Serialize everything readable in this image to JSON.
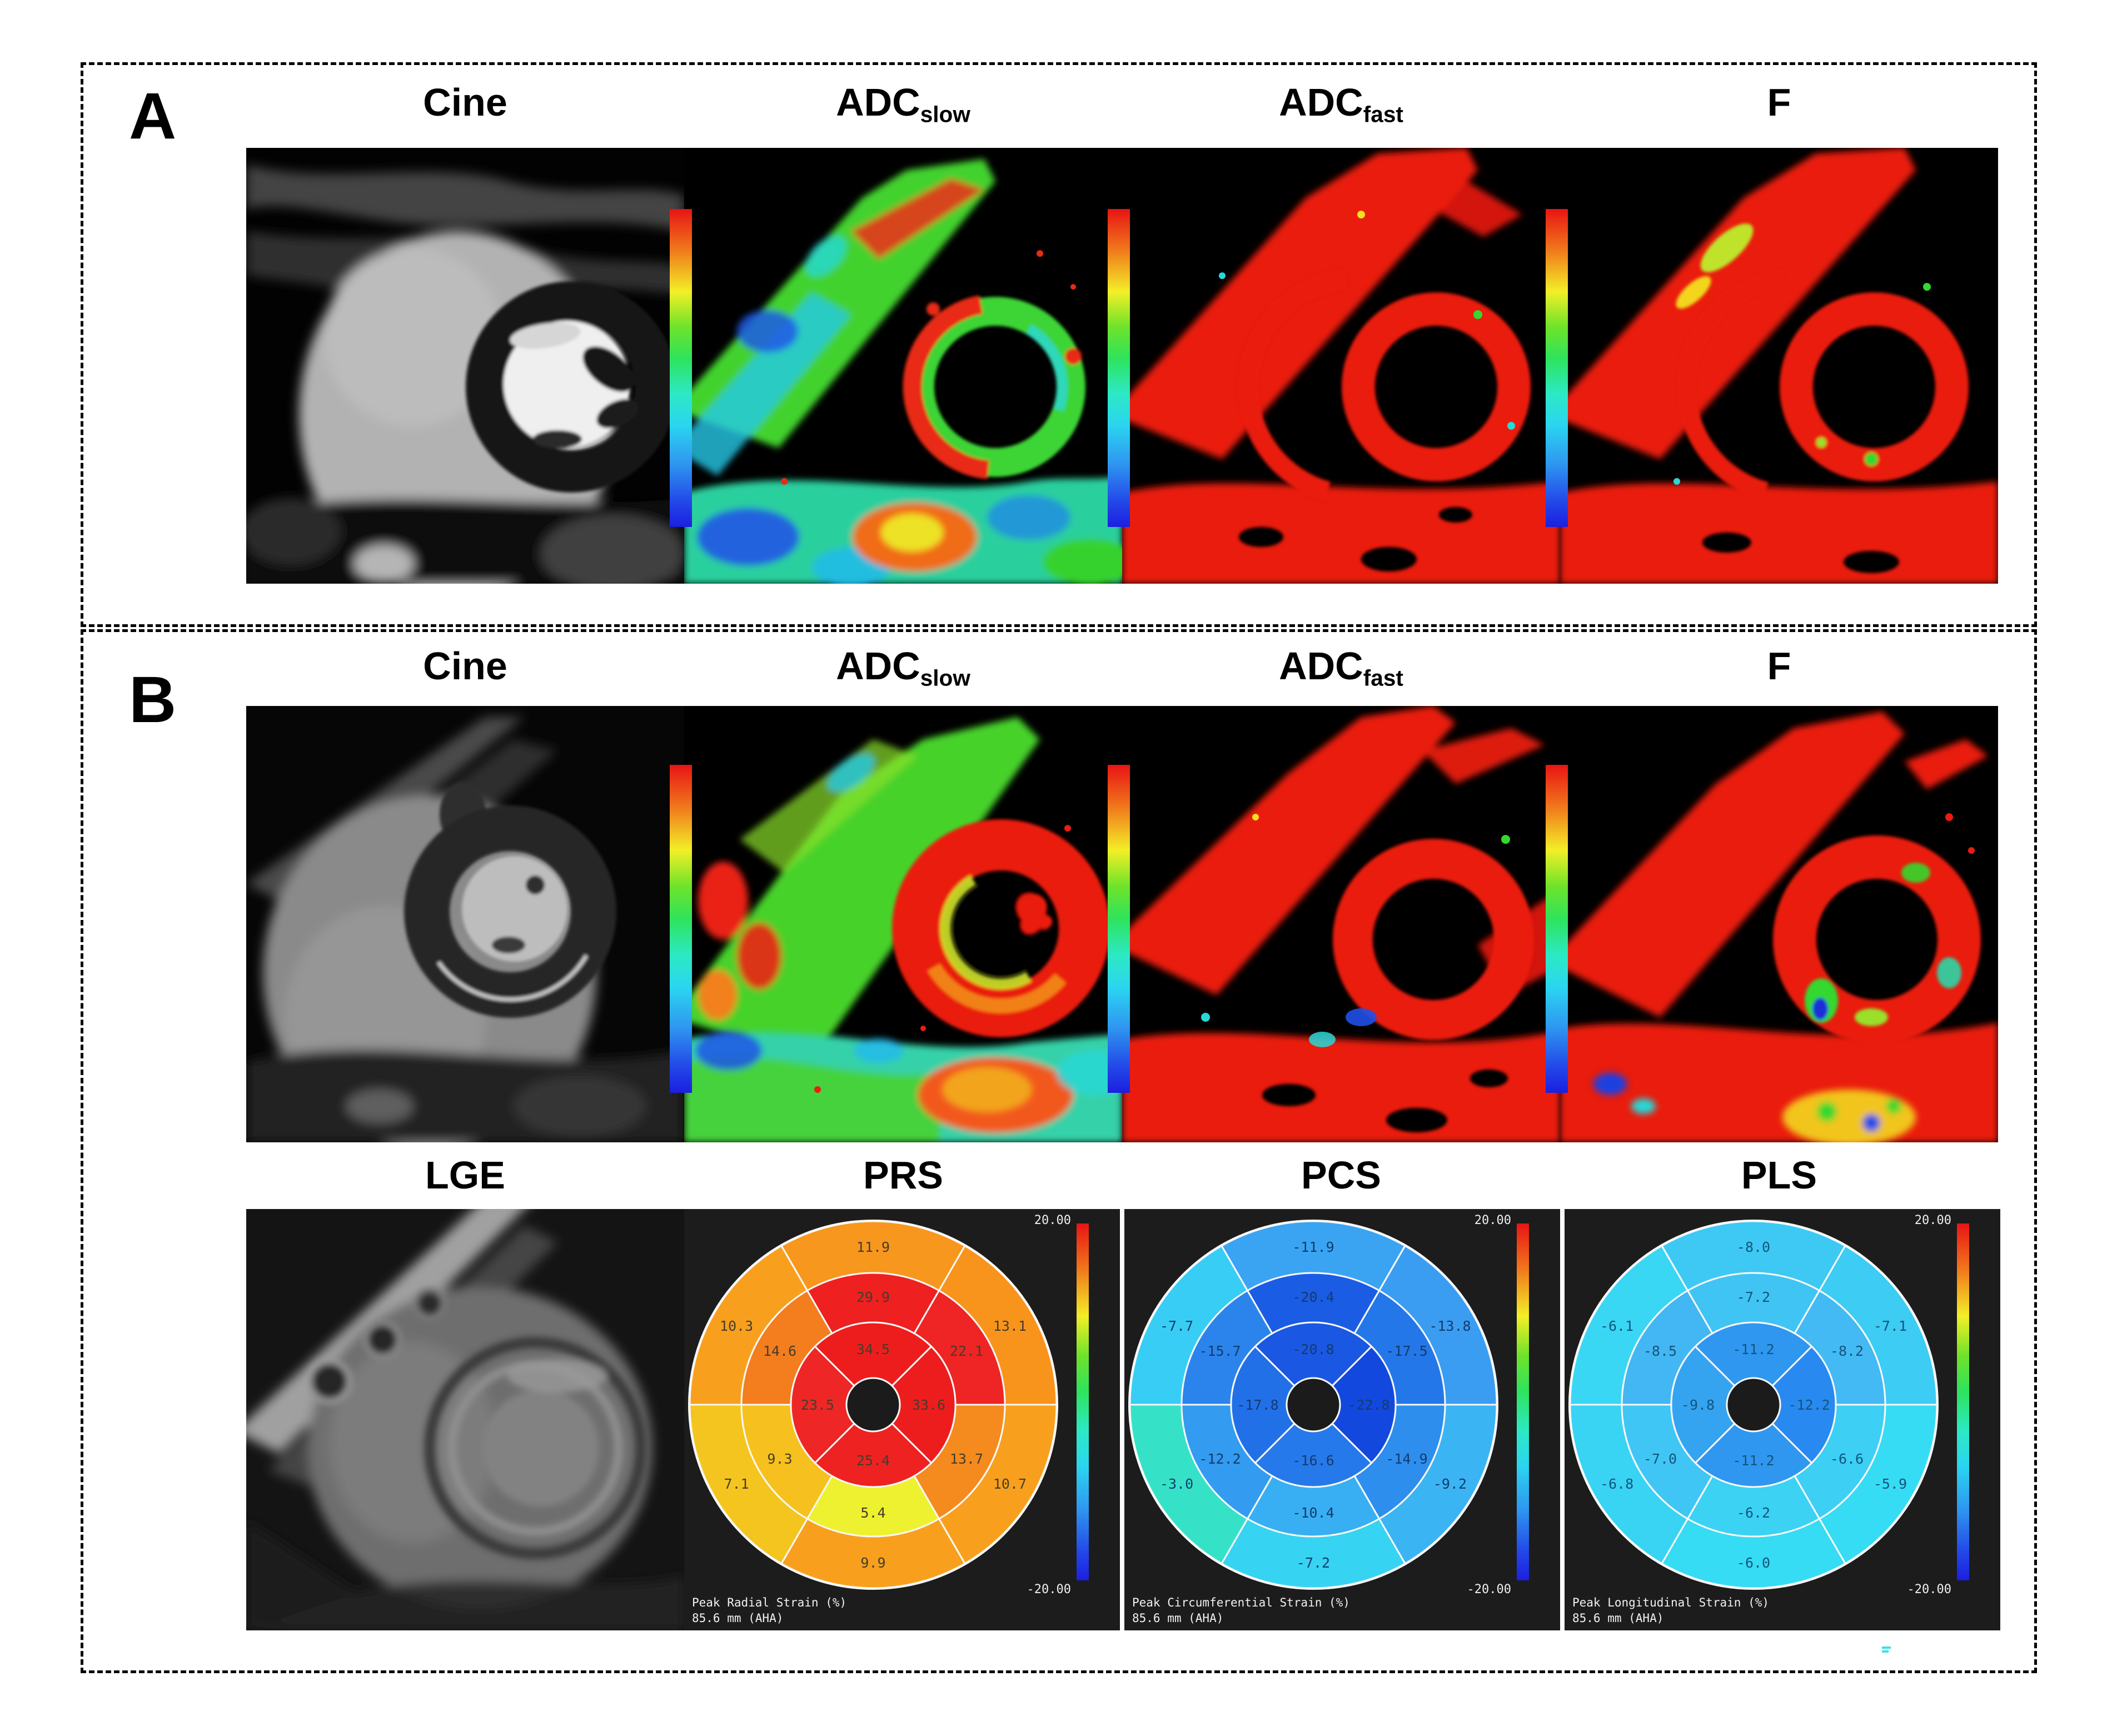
{
  "figure": {
    "panels": [
      {
        "label": "A"
      },
      {
        "label": "B"
      }
    ],
    "map_row_titles": [
      {
        "main": "Cine",
        "sub": ""
      },
      {
        "main": "ADC",
        "sub": "slow"
      },
      {
        "main": "ADC",
        "sub": "fast"
      },
      {
        "main": "F",
        "sub": ""
      }
    ],
    "strain_row_titles": [
      {
        "label": "LGE"
      },
      {
        "label": "PRS"
      },
      {
        "label": "PCS"
      },
      {
        "label": "PLS"
      }
    ],
    "colors": {
      "background": "#ffffff",
      "map_background": "#000000",
      "strain_panel_background": "#1c1c1c",
      "colorbar_top": "#e81414",
      "colorbar_bottom": "#1b1fe0",
      "segment_outline": "#f8f8f8"
    }
  },
  "chart_data": {
    "type": "heatmap",
    "subtype": "AHA-16-segment-bullseye-polar-map",
    "colorbar": {
      "max_label": "20.00",
      "min_label": "-20.00",
      "range": [
        -20,
        20
      ]
    },
    "charts": [
      {
        "id": "prs",
        "title": "PRS",
        "footer_line1": "Peak Radial Strain (%)",
        "footer_line2": "85.6 mm (AHA)",
        "label_color": "#443d2a",
        "rings": {
          "basal": [
            {
              "angle": 90,
              "value": 11.9,
              "color": "#f8971d"
            },
            {
              "angle": 30,
              "value": 13.1,
              "color": "#f8941c"
            },
            {
              "angle": 330,
              "value": 10.7,
              "color": "#f8a01e"
            },
            {
              "angle": 270,
              "value": 9.9,
              "color": "#f8a01e"
            },
            {
              "angle": 210,
              "value": 7.1,
              "color": "#f5c51f"
            },
            {
              "angle": 150,
              "value": 10.3,
              "color": "#f8a01e"
            }
          ],
          "mid": [
            {
              "angle": 90,
              "value": 29.9,
              "color": "#ef2020"
            },
            {
              "angle": 30,
              "value": 22.1,
              "color": "#ef2424"
            },
            {
              "angle": 330,
              "value": 13.7,
              "color": "#f58a1e"
            },
            {
              "angle": 270,
              "value": 5.4,
              "color": "#eef12f"
            },
            {
              "angle": 210,
              "value": 9.3,
              "color": "#f6c11e"
            },
            {
              "angle": 150,
              "value": 14.6,
              "color": "#f47d1e"
            }
          ],
          "apical": [
            {
              "angle": 90,
              "value": 34.5,
              "color": "#ee1d1d"
            },
            {
              "angle": 0,
              "value": 33.6,
              "color": "#ee1d1d"
            },
            {
              "angle": 270,
              "value": 25.4,
              "color": "#ef2222"
            },
            {
              "angle": 180,
              "value": 23.5,
              "color": "#ef2626"
            }
          ]
        }
      },
      {
        "id": "pcs",
        "title": "PCS",
        "footer_line1": "Peak Circumferential Strain (%)",
        "footer_line2": "85.6 mm (AHA)",
        "label_color": "#123c6e",
        "rings": {
          "basal": [
            {
              "angle": 90,
              "value": -11.9,
              "color": "#3aa4f2"
            },
            {
              "angle": 30,
              "value": -13.8,
              "color": "#3a9df2"
            },
            {
              "angle": 330,
              "value": -9.2,
              "color": "#3bb4f3"
            },
            {
              "angle": 270,
              "value": -7.2,
              "color": "#37d3f2"
            },
            {
              "angle": 210,
              "value": -3.0,
              "color": "#35e2c8"
            },
            {
              "angle": 150,
              "value": -7.7,
              "color": "#38cdf4"
            }
          ],
          "mid": [
            {
              "angle": 90,
              "value": -20.4,
              "color": "#1b5ce4"
            },
            {
              "angle": 30,
              "value": -17.5,
              "color": "#2477e9"
            },
            {
              "angle": 330,
              "value": -14.9,
              "color": "#2e8eee"
            },
            {
              "angle": 270,
              "value": -10.4,
              "color": "#38aff2"
            },
            {
              "angle": 210,
              "value": -12.2,
              "color": "#339bf0"
            },
            {
              "angle": 150,
              "value": -15.7,
              "color": "#2a84ec"
            }
          ],
          "apical": [
            {
              "angle": 90,
              "value": -20.8,
              "color": "#1a57e3"
            },
            {
              "angle": 0,
              "value": -22.8,
              "color": "#1348df"
            },
            {
              "angle": 270,
              "value": -16.6,
              "color": "#2679ea"
            },
            {
              "angle": 180,
              "value": -17.8,
              "color": "#2270e8"
            }
          ]
        }
      },
      {
        "id": "pls",
        "title": "PLS",
        "footer_line1": "Peak Longitudinal Strain (%)",
        "footer_line2": "85.6 mm (AHA)",
        "label_color": "#14547c",
        "rings": {
          "basal": [
            {
              "angle": 90,
              "value": -8.0,
              "color": "#3dc9f4"
            },
            {
              "angle": 30,
              "value": -7.1,
              "color": "#3cccf4"
            },
            {
              "angle": 330,
              "value": -5.9,
              "color": "#36dcf4"
            },
            {
              "angle": 270,
              "value": -6.0,
              "color": "#36dbf4"
            },
            {
              "angle": 210,
              "value": -6.8,
              "color": "#39d3f4"
            },
            {
              "angle": 150,
              "value": -6.1,
              "color": "#39d7f4"
            }
          ],
          "mid": [
            {
              "angle": 90,
              "value": -7.2,
              "color": "#40c4f4"
            },
            {
              "angle": 30,
              "value": -8.2,
              "color": "#43baf3"
            },
            {
              "angle": 330,
              "value": -6.6,
              "color": "#3dcff4"
            },
            {
              "angle": 270,
              "value": -6.2,
              "color": "#3bd2f4"
            },
            {
              "angle": 210,
              "value": -7.0,
              "color": "#40c6f4"
            },
            {
              "angle": 150,
              "value": -8.5,
              "color": "#42b7f3"
            }
          ],
          "apical": [
            {
              "angle": 90,
              "value": -11.2,
              "color": "#2f97f0"
            },
            {
              "angle": 0,
              "value": -12.2,
              "color": "#288af0"
            },
            {
              "angle": 270,
              "value": -11.2,
              "color": "#2f97f0"
            },
            {
              "angle": 180,
              "value": -9.8,
              "color": "#34a4f1"
            }
          ]
        }
      }
    ]
  }
}
